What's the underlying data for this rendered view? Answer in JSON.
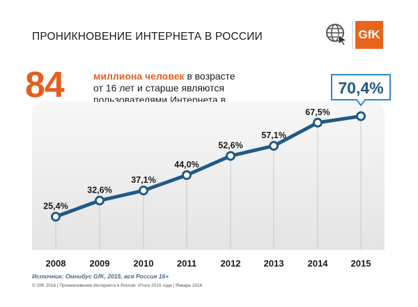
{
  "header": {
    "title": "ПРОНИКНОВЕНИЕ ИНТЕРНЕТА В РОССИИ",
    "logo_text": "GfK",
    "web_icon": "globe-cursor-icon"
  },
  "headline": {
    "number": "84",
    "strong": "миллиона человек",
    "line1_rest": " в возрасте",
    "line2": "от 16 лет и старше являются",
    "line3": "пользователями Интернета в России"
  },
  "chart_data": {
    "type": "line",
    "x": [
      "2008",
      "2009",
      "2010",
      "2011",
      "2012",
      "2013",
      "2014",
      "2015"
    ],
    "values": [
      25.4,
      32.6,
      37.1,
      44.0,
      52.6,
      57.1,
      67.5,
      70.4
    ],
    "value_labels": [
      "25,4%",
      "32,6%",
      "37,1%",
      "44,0%",
      "52,6%",
      "57,1%",
      "67,5%",
      "70,4%"
    ],
    "highlight_index": 7,
    "colors": {
      "line": "#1f5a86",
      "marker_fill": "#ffffff",
      "plot_bg": "#ececec",
      "accent": "#e55e1e",
      "callout_border": "#2e86c8"
    }
  },
  "source": "Источник: Омнибус GfK, 2015, вся Россия 16+",
  "footer": "© GfK 2016 | Проникновение Интернета в России: Итоги 2015 года | Январь 2016"
}
